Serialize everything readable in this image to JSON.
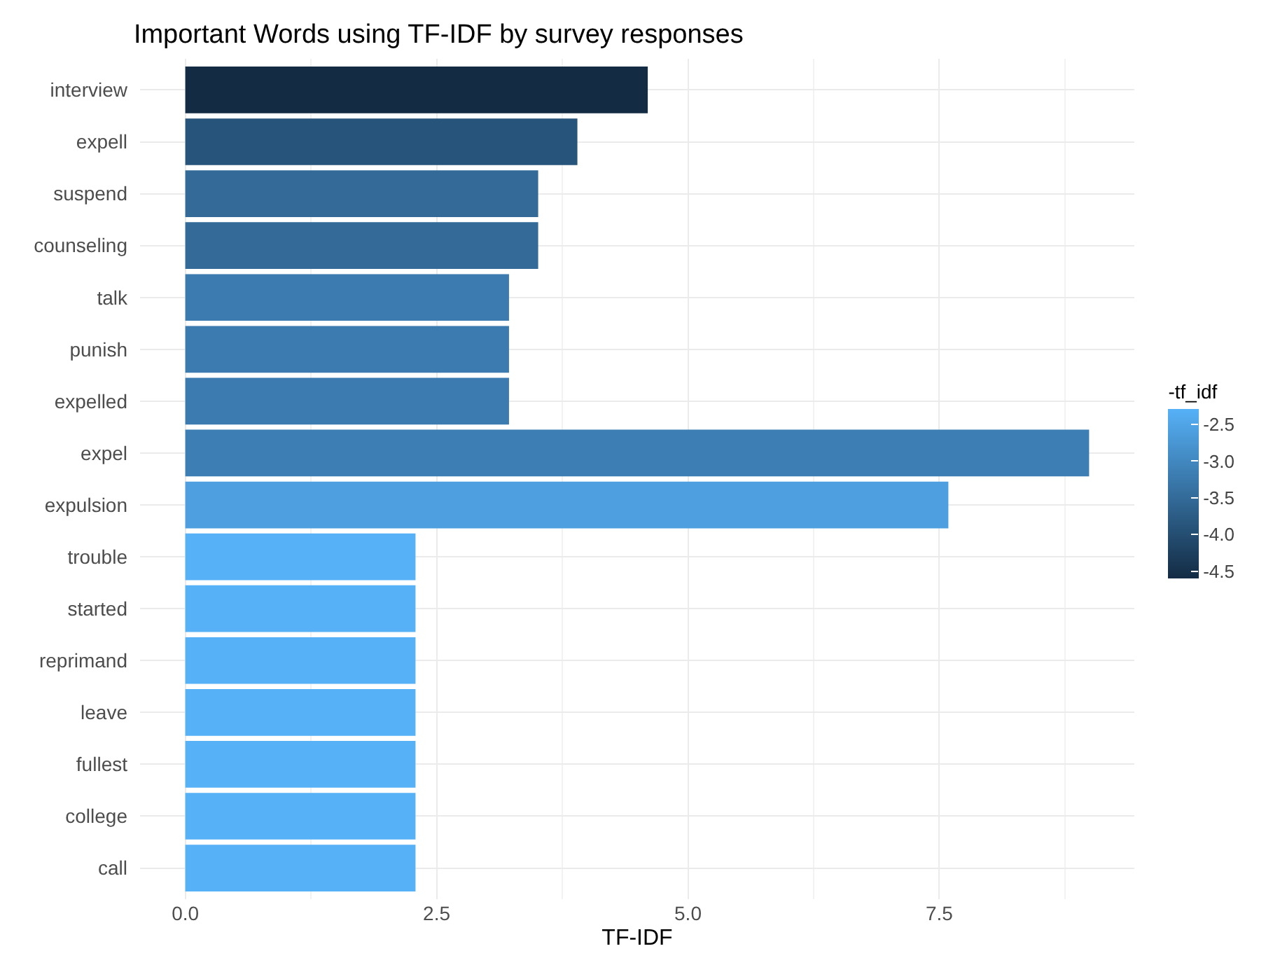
{
  "chart_data": {
    "type": "bar",
    "orientation": "horizontal",
    "title": "Important Words using TF-IDF by survey responses",
    "xlabel": "TF-IDF",
    "clabel": "-tf_idf",
    "categories": [
      "interview",
      "expell",
      "suspend",
      "counseling",
      "talk",
      "punish",
      "expelled",
      "expel",
      "expulsion",
      "trouble",
      "started",
      "reprimand",
      "leave",
      "fullest",
      "college",
      "call"
    ],
    "values": [
      4.6,
      3.9,
      3.51,
      3.51,
      3.22,
      3.22,
      3.22,
      8.99,
      7.59,
      2.29,
      2.29,
      2.29,
      2.29,
      2.29,
      2.29,
      2.29
    ],
    "cvalues": [
      -4.6,
      -3.9,
      -3.51,
      -3.51,
      -3.22,
      -3.22,
      -3.22,
      -3.15,
      -2.6,
      -2.29,
      -2.29,
      -2.29,
      -2.29,
      -2.29,
      -2.29,
      -2.29
    ],
    "clim": [
      -4.6,
      -2.29
    ],
    "cticks": [
      -2.5,
      {
        "value": -3,
        "label": "-3.0"
      },
      {
        "value": -3.5,
        "label": "-3.5"
      },
      {
        "value": -4.0,
        "label": "-4.0"
      },
      -4.5
    ],
    "xlim": [
      -0.45,
      9.44
    ],
    "xticks": [
      {
        "value": 0,
        "label": "0.0"
      },
      2.5,
      {
        "value": 5,
        "label": "5.0"
      },
      7.5
    ],
    "grid": true
  }
}
